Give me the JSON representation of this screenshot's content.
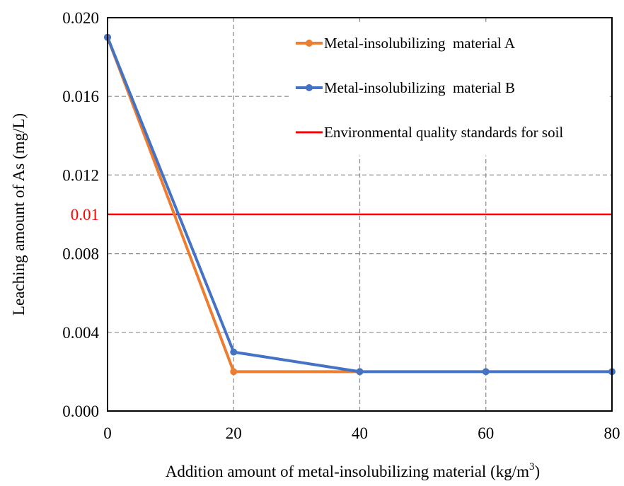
{
  "colors": {
    "series_a": "#ED7D31",
    "series_b": "#4472C4",
    "standard": "#FF0000",
    "grid": "#8C8C8C",
    "axis": "#000000"
  },
  "chart_data": {
    "type": "line",
    "title": "",
    "xlabel": "Addition amount of metal-insolubilizing material (kg/m",
    "xlabel_unit_superscript": "3",
    "xlabel_suffix": ")",
    "ylabel": "Leaching amount of As (mg/L)",
    "x": [
      0,
      20,
      40,
      60,
      80
    ],
    "xlim": [
      0,
      80
    ],
    "ylim": [
      0,
      0.02
    ],
    "x_ticks": [
      "0",
      "20",
      "40",
      "60",
      "80"
    ],
    "y_ticks": [
      "0.000",
      "0.004",
      "0.008",
      "0.012",
      "0.016",
      "0.020"
    ],
    "y_tick_values": [
      0,
      0.004,
      0.008,
      0.012,
      0.016,
      0.02
    ],
    "grid": "dashed",
    "legend_position": "top-right",
    "series": [
      {
        "name": "Metal-insolubilizing  material A",
        "x": [
          0,
          20,
          40
        ],
        "values": [
          0.019,
          0.002,
          0.002
        ]
      },
      {
        "name": "Metal-insolubilizing  material B",
        "x": [
          0,
          20,
          40,
          60,
          80
        ],
        "values": [
          0.019,
          0.003,
          0.002,
          0.002,
          0.002
        ]
      }
    ],
    "reference_line": {
      "name": "Environmental quality standards for soil",
      "value": 0.01,
      "label": "0.01"
    }
  }
}
